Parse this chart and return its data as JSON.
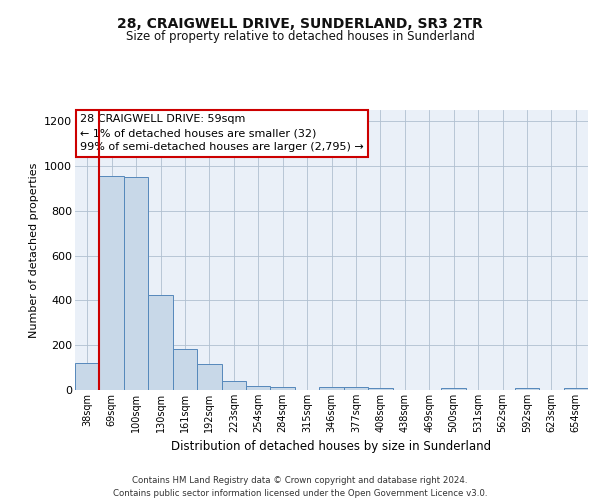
{
  "title": "28, CRAIGWELL DRIVE, SUNDERLAND, SR3 2TR",
  "subtitle": "Size of property relative to detached houses in Sunderland",
  "xlabel": "Distribution of detached houses by size in Sunderland",
  "ylabel": "Number of detached properties",
  "categories": [
    "38sqm",
    "69sqm",
    "100sqm",
    "130sqm",
    "161sqm",
    "192sqm",
    "223sqm",
    "254sqm",
    "284sqm",
    "315sqm",
    "346sqm",
    "377sqm",
    "408sqm",
    "438sqm",
    "469sqm",
    "500sqm",
    "531sqm",
    "562sqm",
    "592sqm",
    "623sqm",
    "654sqm"
  ],
  "values": [
    120,
    955,
    950,
    425,
    185,
    115,
    42,
    18,
    15,
    0,
    15,
    15,
    8,
    0,
    0,
    10,
    0,
    0,
    10,
    0,
    10
  ],
  "bar_color": "#c8d8e8",
  "bar_edge_color": "#5588bb",
  "vline_color": "#cc0000",
  "annotation_text": "28 CRAIGWELL DRIVE: 59sqm\n← 1% of detached houses are smaller (32)\n99% of semi-detached houses are larger (2,795) →",
  "annotation_box_color": "#ffffff",
  "annotation_box_edge": "#cc0000",
  "ylim": [
    0,
    1250
  ],
  "yticks": [
    0,
    200,
    400,
    600,
    800,
    1000,
    1200
  ],
  "footer_text": "Contains HM Land Registry data © Crown copyright and database right 2024.\nContains public sector information licensed under the Open Government Licence v3.0.",
  "plot_bg_color": "#eaf0f8",
  "title_fontsize": 10,
  "subtitle_fontsize": 8.5
}
